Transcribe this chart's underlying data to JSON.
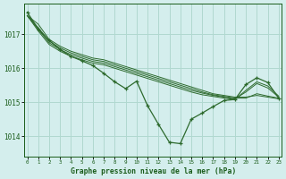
{
  "title": "Graphe pression niveau de la mer (hPa)",
  "hours": [
    0,
    1,
    2,
    3,
    4,
    5,
    6,
    7,
    8,
    9,
    10,
    11,
    12,
    13,
    14,
    15,
    16,
    17,
    18,
    19,
    20,
    21,
    22,
    23
  ],
  "bg_series": [
    [
      1017.55,
      1017.3,
      1016.85,
      1016.65,
      1016.5,
      1016.4,
      1016.3,
      1016.25,
      1016.15,
      1016.05,
      1015.95,
      1015.85,
      1015.75,
      1015.65,
      1015.55,
      1015.45,
      1015.35,
      1015.25,
      1015.2,
      1015.15,
      1015.15,
      1015.2,
      1015.15,
      1015.1
    ],
    [
      1017.55,
      1017.2,
      1016.8,
      1016.6,
      1016.45,
      1016.35,
      1016.25,
      1016.2,
      1016.1,
      1016.0,
      1015.9,
      1015.8,
      1015.7,
      1015.6,
      1015.5,
      1015.4,
      1015.3,
      1015.22,
      1015.17,
      1015.12,
      1015.12,
      1015.25,
      1015.18,
      1015.12
    ],
    [
      1017.55,
      1017.15,
      1016.75,
      1016.55,
      1016.4,
      1016.3,
      1016.2,
      1016.15,
      1016.05,
      1015.95,
      1015.85,
      1015.75,
      1015.65,
      1015.55,
      1015.45,
      1015.35,
      1015.27,
      1015.2,
      1015.15,
      1015.1,
      1015.3,
      1015.55,
      1015.42,
      1015.15
    ],
    [
      1017.55,
      1017.1,
      1016.7,
      1016.5,
      1016.35,
      1016.25,
      1016.15,
      1016.1,
      1016.0,
      1015.9,
      1015.8,
      1015.7,
      1015.6,
      1015.5,
      1015.4,
      1015.3,
      1015.22,
      1015.17,
      1015.12,
      1015.08,
      1015.35,
      1015.6,
      1015.48,
      1015.18
    ]
  ],
  "main_y": [
    1017.65,
    1017.15,
    1016.82,
    1016.55,
    1016.35,
    1016.22,
    1016.08,
    1015.85,
    1015.6,
    1015.4,
    1015.62,
    1014.9,
    1014.35,
    1013.82,
    1013.78,
    1014.5,
    1014.68,
    1014.87,
    1015.05,
    1015.08,
    1015.52,
    1015.72,
    1015.58,
    1015.12
  ],
  "line_color": "#2d6a2d",
  "bg_color": "#d4eeed",
  "grid_color": "#b0d8d0",
  "text_color": "#1a5c1a",
  "ylim": [
    1013.4,
    1017.9
  ],
  "yticks": [
    1014,
    1015,
    1016,
    1017
  ],
  "figsize": [
    3.2,
    2.0
  ],
  "dpi": 100
}
